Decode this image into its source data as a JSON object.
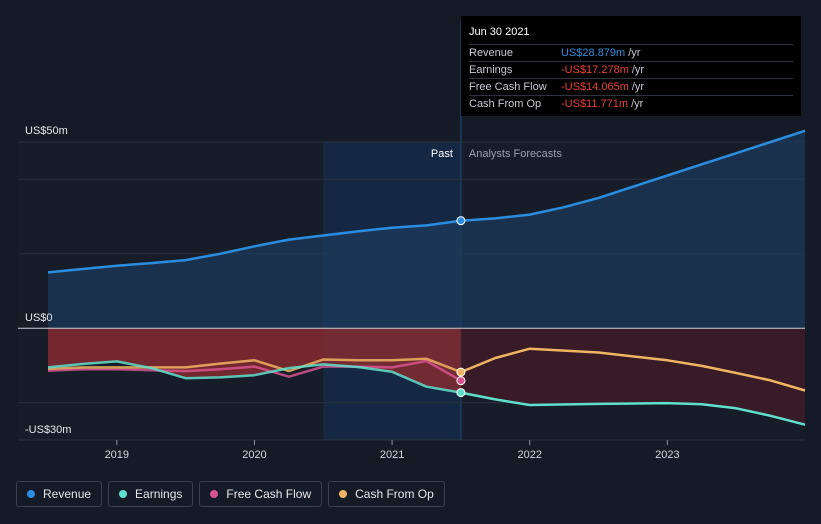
{
  "tooltip": {
    "date": "Jun 30 2021",
    "rows": [
      {
        "name": "Revenue",
        "value": "US$28.879m",
        "unit": "/yr",
        "color": "#2f8fe0"
      },
      {
        "name": "Earnings",
        "value": "-US$17.278m",
        "unit": "/yr",
        "color": "#e8413a"
      },
      {
        "name": "Free Cash Flow",
        "value": "-US$14.065m",
        "unit": "/yr",
        "color": "#e8413a"
      },
      {
        "name": "Cash From Op",
        "value": "-US$11.771m",
        "unit": "/yr",
        "color": "#e8413a"
      }
    ]
  },
  "legend": [
    {
      "name": "Revenue",
      "color": "#2b8de0"
    },
    {
      "name": "Earnings",
      "color": "#5fe0cc"
    },
    {
      "name": "Free Cash Flow",
      "color": "#d8548f"
    },
    {
      "name": "Cash From Op",
      "color": "#f0b462"
    }
  ],
  "chart_data": {
    "type": "line",
    "y_tick_labels": [
      "US$50m",
      "US$0",
      "-US$30m"
    ],
    "ylim": [
      -30,
      50
    ],
    "xlim": [
      2018.5,
      2024.0
    ],
    "x_tick_labels": [
      "2019",
      "2020",
      "2021",
      "2022",
      "2023"
    ],
    "x_ticks": [
      2019,
      2020,
      2021,
      2022,
      2023
    ],
    "past_label": "Past",
    "forecast_label": "Analysts Forecasts",
    "past_end": 2021.5,
    "highlight_start": 2020.5,
    "series": [
      {
        "name": "Revenue",
        "color": "#2b8de0",
        "points": [
          [
            2018.5,
            15
          ],
          [
            2018.75,
            15.9
          ],
          [
            2019.0,
            16.8
          ],
          [
            2019.25,
            17.5
          ],
          [
            2019.5,
            18.3
          ],
          [
            2019.75,
            20
          ],
          [
            2020.0,
            22
          ],
          [
            2020.25,
            23.8
          ],
          [
            2020.5,
            24.9
          ],
          [
            2020.75,
            26
          ],
          [
            2021.0,
            27
          ],
          [
            2021.25,
            27.6
          ],
          [
            2021.5,
            28.879
          ],
          [
            2021.75,
            29.5
          ],
          [
            2022.0,
            30.5
          ],
          [
            2022.25,
            32.5
          ],
          [
            2022.5,
            35
          ],
          [
            2022.75,
            38
          ],
          [
            2023.0,
            41
          ],
          [
            2023.25,
            44
          ],
          [
            2023.5,
            47
          ],
          [
            2023.75,
            50
          ],
          [
            2024.0,
            53
          ]
        ]
      },
      {
        "name": "Earnings",
        "color": "#5fe0cc",
        "points": [
          [
            2018.5,
            -10.5
          ],
          [
            2018.75,
            -9.6
          ],
          [
            2019.0,
            -8.9
          ],
          [
            2019.25,
            -10.7
          ],
          [
            2019.5,
            -13.4
          ],
          [
            2019.75,
            -13.2
          ],
          [
            2020.0,
            -12.6
          ],
          [
            2020.25,
            -10.7
          ],
          [
            2020.5,
            -9.7
          ],
          [
            2020.75,
            -10.4
          ],
          [
            2021.0,
            -11.7
          ],
          [
            2021.25,
            -15.7
          ],
          [
            2021.5,
            -17.278
          ],
          [
            2021.75,
            -19.1
          ],
          [
            2022.0,
            -20.6
          ],
          [
            2022.5,
            -20.3
          ],
          [
            2023.0,
            -20.1
          ],
          [
            2023.25,
            -20.4
          ],
          [
            2023.5,
            -21.5
          ],
          [
            2023.75,
            -23.5
          ],
          [
            2024.0,
            -25.9
          ]
        ]
      },
      {
        "name": "Free Cash Flow",
        "color": "#d8548f",
        "points": [
          [
            2018.5,
            -11.4
          ],
          [
            2018.75,
            -11.0
          ],
          [
            2019.0,
            -11.0
          ],
          [
            2019.25,
            -11.3
          ],
          [
            2019.5,
            -11.5
          ],
          [
            2019.75,
            -11.0
          ],
          [
            2020.0,
            -10.3
          ],
          [
            2020.25,
            -13.0
          ],
          [
            2020.5,
            -10.3
          ],
          [
            2020.75,
            -10.3
          ],
          [
            2021.0,
            -10.5
          ],
          [
            2021.25,
            -8.8
          ],
          [
            2021.5,
            -14.065
          ]
        ]
      },
      {
        "name": "Cash From Op",
        "color": "#f0b462",
        "points": [
          [
            2018.5,
            -10.9
          ],
          [
            2018.75,
            -10.5
          ],
          [
            2019.0,
            -10.5
          ],
          [
            2019.25,
            -10.5
          ],
          [
            2019.5,
            -10.5
          ],
          [
            2019.75,
            -9.5
          ],
          [
            2020.0,
            -8.6
          ],
          [
            2020.25,
            -11.5
          ],
          [
            2020.5,
            -8.4
          ],
          [
            2020.75,
            -8.6
          ],
          [
            2021.0,
            -8.6
          ],
          [
            2021.25,
            -8.2
          ],
          [
            2021.5,
            -11.771
          ],
          [
            2021.75,
            -8.0
          ],
          [
            2022.0,
            -5.5
          ],
          [
            2022.5,
            -6.5
          ],
          [
            2023.0,
            -8.6
          ],
          [
            2023.25,
            -10.1
          ],
          [
            2023.5,
            -12
          ],
          [
            2023.75,
            -14
          ],
          [
            2024.0,
            -16.7
          ]
        ]
      }
    ]
  }
}
